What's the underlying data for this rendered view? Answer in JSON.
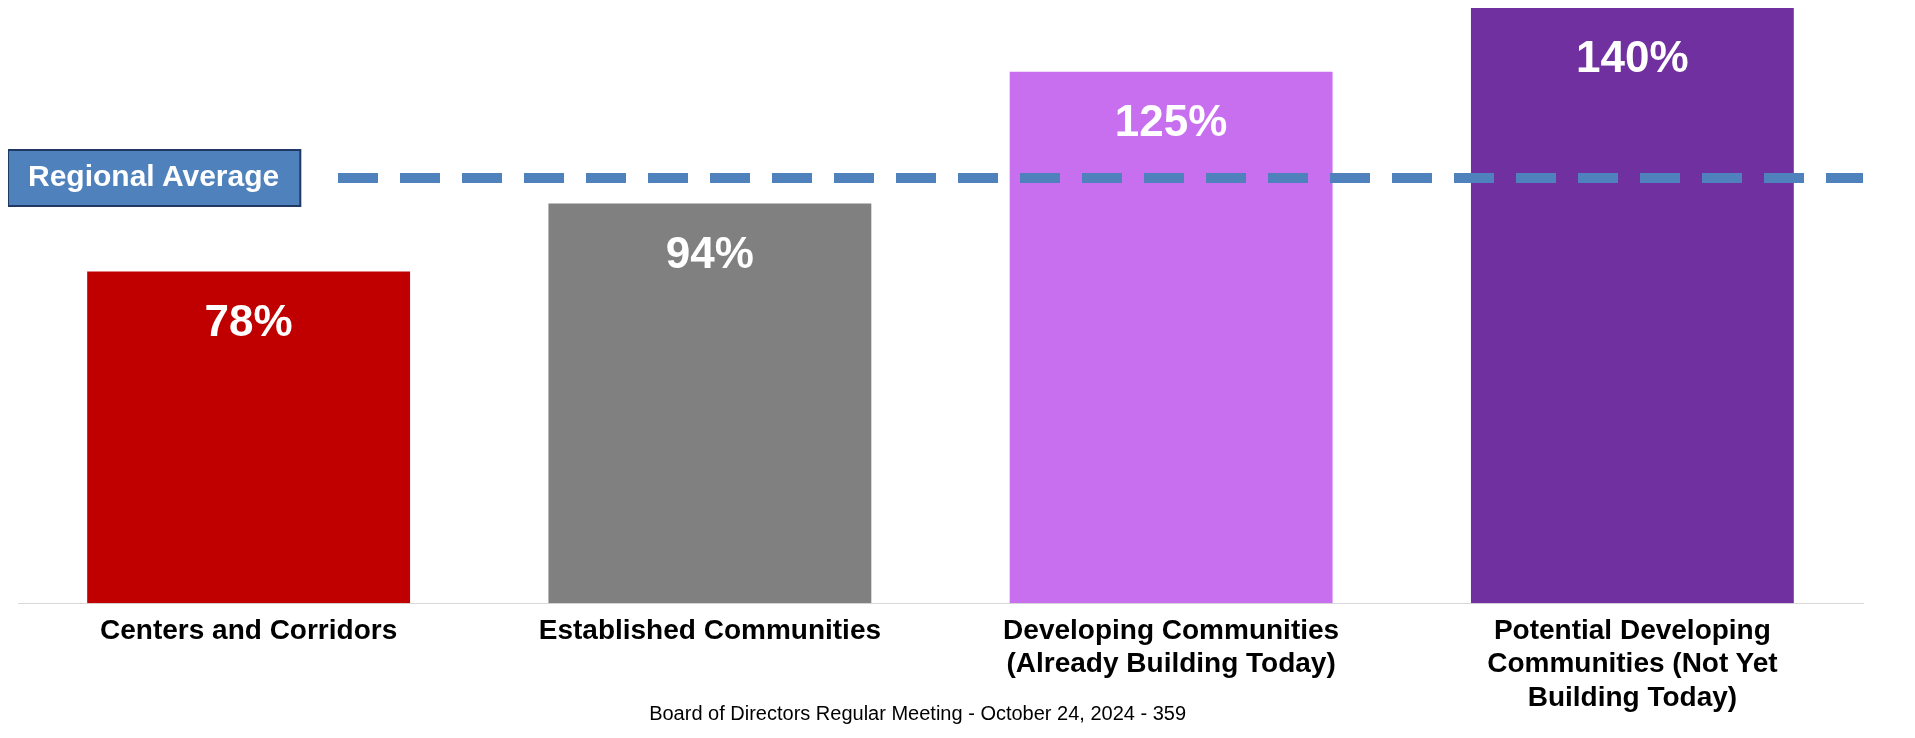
{
  "chart_data": {
    "type": "bar",
    "categories": [
      "Centers and Corridors",
      "Established Communities",
      "Developing Communities (Already Building Today)",
      "Potential Developing Communities (Not Yet Building Today)"
    ],
    "values": [
      78,
      94,
      125,
      140
    ],
    "colors": [
      "#c00000",
      "#808080",
      "#c86ff0",
      "#7030a0"
    ],
    "value_labels": [
      "78%",
      "94%",
      "125%",
      "140%"
    ],
    "ref_lines": [
      {
        "axis": "y",
        "value": 100,
        "label": "Regional Average",
        "color": "#4f81bd",
        "line_style": "dashed"
      }
    ],
    "annotations": [
      "Board of Directors Regular Meeting - October 24, 2024 - 359"
    ],
    "legend": false,
    "grid": false
  }
}
